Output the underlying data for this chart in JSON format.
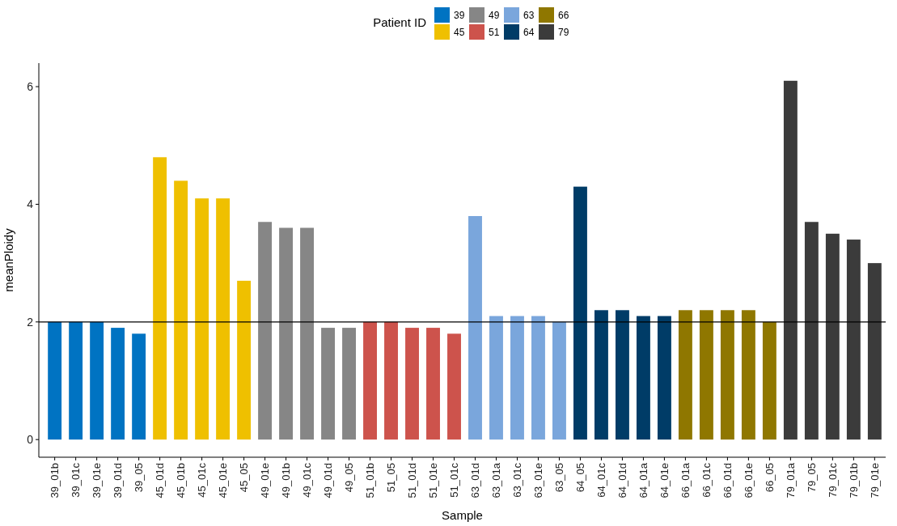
{
  "chart_data": {
    "type": "bar",
    "xlabel": "Sample",
    "ylabel": "meanPloidy",
    "legend_title": "Patient ID",
    "legend": "top",
    "categories": [
      "39_01b",
      "39_01c",
      "39_01e",
      "39_01d",
      "39_05",
      "45_01d",
      "45_01b",
      "45_01c",
      "45_01e",
      "45_05",
      "49_01e",
      "49_01b",
      "49_01c",
      "49_01d",
      "49_05",
      "51_01b",
      "51_05",
      "51_01d",
      "51_01e",
      "51_01c",
      "63_01d",
      "63_01a",
      "63_01c",
      "63_01e",
      "63_05",
      "64_05",
      "64_01c",
      "64_01d",
      "64_01a",
      "64_01e",
      "66_01a",
      "66_01c",
      "66_01d",
      "66_01e",
      "66_05",
      "79_01a",
      "79_05",
      "79_01c",
      "79_01b",
      "79_01e"
    ],
    "series": [
      {
        "name": "39",
        "color": "#0073c2",
        "values": [
          2.0,
          2.0,
          2.0,
          1.9,
          1.8,
          null,
          null,
          null,
          null,
          null,
          null,
          null,
          null,
          null,
          null,
          null,
          null,
          null,
          null,
          null,
          null,
          null,
          null,
          null,
          null,
          null,
          null,
          null,
          null,
          null,
          null,
          null,
          null,
          null,
          null,
          null,
          null,
          null,
          null,
          null
        ]
      },
      {
        "name": "45",
        "color": "#efc000",
        "values": [
          null,
          null,
          null,
          null,
          null,
          4.8,
          4.4,
          4.1,
          4.1,
          2.7,
          null,
          null,
          null,
          null,
          null,
          null,
          null,
          null,
          null,
          null,
          null,
          null,
          null,
          null,
          null,
          null,
          null,
          null,
          null,
          null,
          null,
          null,
          null,
          null,
          null,
          null,
          null,
          null,
          null,
          null
        ]
      },
      {
        "name": "49",
        "color": "#868686",
        "values": [
          null,
          null,
          null,
          null,
          null,
          null,
          null,
          null,
          null,
          null,
          3.7,
          3.6,
          3.6,
          1.9,
          1.9,
          null,
          null,
          null,
          null,
          null,
          null,
          null,
          null,
          null,
          null,
          null,
          null,
          null,
          null,
          null,
          null,
          null,
          null,
          null,
          null,
          null,
          null,
          null,
          null,
          null
        ]
      },
      {
        "name": "51",
        "color": "#cd534c",
        "values": [
          null,
          null,
          null,
          null,
          null,
          null,
          null,
          null,
          null,
          null,
          null,
          null,
          null,
          null,
          null,
          2.0,
          2.0,
          1.9,
          1.9,
          1.8,
          null,
          null,
          null,
          null,
          null,
          null,
          null,
          null,
          null,
          null,
          null,
          null,
          null,
          null,
          null,
          null,
          null,
          null,
          null,
          null
        ]
      },
      {
        "name": "63",
        "color": "#7aa6dc",
        "values": [
          null,
          null,
          null,
          null,
          null,
          null,
          null,
          null,
          null,
          null,
          null,
          null,
          null,
          null,
          null,
          null,
          null,
          null,
          null,
          null,
          3.8,
          2.1,
          2.1,
          2.1,
          2.0,
          null,
          null,
          null,
          null,
          null,
          null,
          null,
          null,
          null,
          null,
          null,
          null,
          null,
          null,
          null
        ]
      },
      {
        "name": "64",
        "color": "#003c67",
        "values": [
          null,
          null,
          null,
          null,
          null,
          null,
          null,
          null,
          null,
          null,
          null,
          null,
          null,
          null,
          null,
          null,
          null,
          null,
          null,
          null,
          null,
          null,
          null,
          null,
          null,
          4.3,
          2.2,
          2.2,
          2.1,
          2.1,
          null,
          null,
          null,
          null,
          null,
          null,
          null,
          null,
          null,
          null
        ]
      },
      {
        "name": "66",
        "color": "#8f7700",
        "values": [
          null,
          null,
          null,
          null,
          null,
          null,
          null,
          null,
          null,
          null,
          null,
          null,
          null,
          null,
          null,
          null,
          null,
          null,
          null,
          null,
          null,
          null,
          null,
          null,
          null,
          null,
          null,
          null,
          null,
          null,
          2.2,
          2.2,
          2.2,
          2.2,
          2.0,
          null,
          null,
          null,
          null,
          null
        ]
      },
      {
        "name": "79",
        "color": "#3b3b3b",
        "values": [
          null,
          null,
          null,
          null,
          null,
          null,
          null,
          null,
          null,
          null,
          null,
          null,
          null,
          null,
          null,
          null,
          null,
          null,
          null,
          null,
          null,
          null,
          null,
          null,
          null,
          null,
          null,
          null,
          null,
          null,
          null,
          null,
          null,
          null,
          null,
          6.1,
          3.7,
          3.5,
          3.4,
          3.0
        ]
      }
    ],
    "ylim": [
      -0.3,
      6.4
    ],
    "yticks": [
      0,
      2,
      4,
      6
    ],
    "grid": false,
    "ref_lines": [
      {
        "axis": "y",
        "value": 2,
        "color": "#000000"
      }
    ]
  }
}
